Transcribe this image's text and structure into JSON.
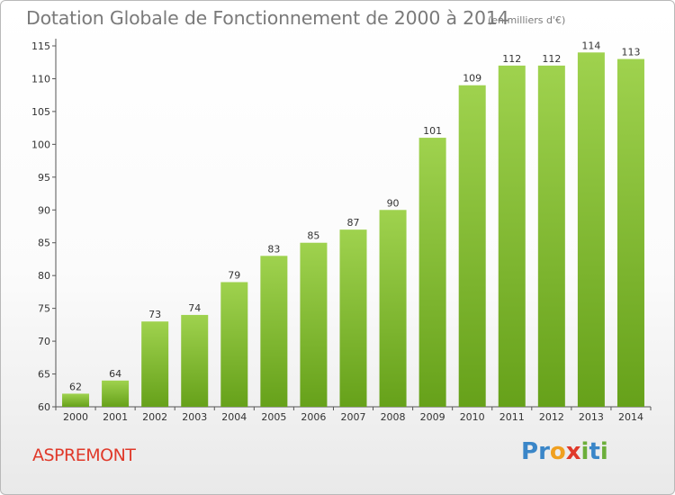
{
  "title": "Dotation Globale de Fonctionnement de 2000 à 2014",
  "subtitle": "(en milliers d'€)",
  "town": "ASPREMONT",
  "logo": {
    "name": "Proxiti",
    "letters": [
      "P",
      "r",
      "o",
      "x",
      "i",
      "t",
      "i"
    ],
    "colors": [
      "#3a86c8",
      "#3a86c8",
      "#f0a020",
      "#e0392a",
      "#6cae3a",
      "#3a86c8",
      "#6cae3a"
    ]
  },
  "colors": {
    "bar_light": "#9fd24e",
    "bar_dark": "#66a11a",
    "axis": "#555555",
    "town": "#e0392a",
    "title": "#7a7a7a"
  },
  "chart_data": {
    "type": "bar",
    "title": "Dotation Globale de Fonctionnement de 2000 à 2014",
    "subtitle": "(en milliers d'€)",
    "categories": [
      "2000",
      "2001",
      "2002",
      "2003",
      "2004",
      "2005",
      "2006",
      "2007",
      "2008",
      "2009",
      "2010",
      "2011",
      "2012",
      "2013",
      "2014"
    ],
    "values": [
      62,
      64,
      73,
      74,
      79,
      83,
      85,
      87,
      90,
      101,
      109,
      112,
      112,
      114,
      113
    ],
    "ylim": [
      60,
      115
    ],
    "yticks": [
      60,
      65,
      70,
      75,
      80,
      85,
      90,
      95,
      100,
      105,
      110,
      115
    ],
    "xlabel": "",
    "ylabel": "",
    "grid": false,
    "data_labels": true
  }
}
